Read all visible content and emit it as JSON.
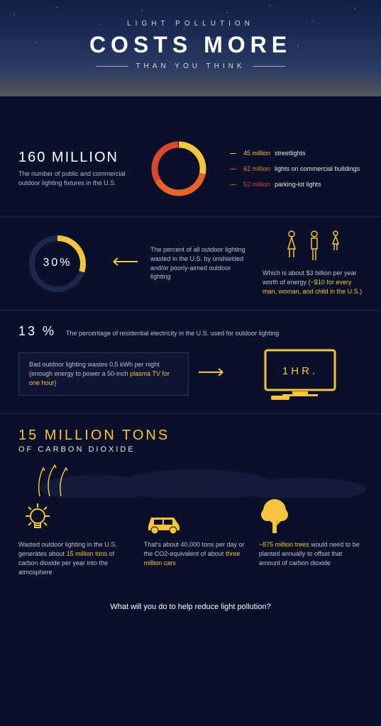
{
  "colors": {
    "bg": "#0a0f2a",
    "panel": "#111a3b",
    "yellow": "#f5c542",
    "orange": "#e8842a",
    "orange2": "#e8632a",
    "red": "#d9482a",
    "text": "#e8e8e8",
    "muted": "#c0c0d0",
    "white": "#ffffff"
  },
  "hero": {
    "eyebrow": "LIGHT POLLUTION",
    "title": "COSTS MORE",
    "subtitle": "THAN YOU THINK"
  },
  "section1": {
    "headline": "160 MILLION",
    "caption": "The number of public and commercial outdoor lighting fixtures in the U.S.",
    "donut": {
      "type": "donut",
      "total": 160,
      "segments": [
        {
          "label": "streetlights",
          "value": 45,
          "color": "#f5c542"
        },
        {
          "label": "lights on commercial buildings",
          "value": 62,
          "color": "#e8632a"
        },
        {
          "label": "parking-lot lights",
          "value": 52,
          "color": "#d9482a"
        }
      ],
      "stroke_width": 9,
      "radius": 34
    },
    "legend": [
      {
        "value": "45 million",
        "label": "streetlights",
        "value_color": "#f5c542"
      },
      {
        "value": "62 million",
        "label": "lights on commercial buildings",
        "value_color": "#e8632a"
      },
      {
        "value": "52 million",
        "label": "parking-lot lights",
        "value_color": "#d9482a"
      }
    ]
  },
  "section2": {
    "ring": {
      "type": "progress-ring",
      "percent": 30,
      "label": "30%",
      "color": "#f5c542",
      "track": "#1d274d",
      "stroke_width": 8,
      "radius": 36
    },
    "mid_text": "The percent of all outdoor lighting wasted in the U.S. by unshielded and/or poorly-aimed outdoor lighting",
    "right_text_pre": "Which is about $3 billion per year worth of energy ",
    "right_text_accent": "(~$10 for every man, woman, and child in the U.S.)",
    "icons": [
      "woman",
      "man",
      "child"
    ]
  },
  "section3": {
    "pct": "13 %",
    "pct_caption": "The percentage of residential electricity in the U.S. used for outdoor lighting",
    "box_pre": "Bad outdoor lighting wastes 0.5 kWh per night (enough energy to power a 50-inch ",
    "box_accent": "plasma TV for one hour",
    "box_post": ")",
    "tv_label": "1HR."
  },
  "section4": {
    "headline": "15 MILLION TONS",
    "subhead": "OF CARBON DIOXIDE",
    "cols": [
      {
        "icon": "bulb",
        "pre": "Wasted outdoor lighting in the U.S. generates about ",
        "accent": "15 million tons",
        "post": " of carbon dioxide per year into the atmosphere"
      },
      {
        "icon": "car",
        "pre": "That's about 40,000 tons per day or the CO2-equivalent of about ",
        "accent": "three million cars",
        "post": ""
      },
      {
        "icon": "tree",
        "pre": "",
        "accent": "~875 million trees",
        "post": " would need to be planted annually to offset that amount of carbon dioxide"
      }
    ]
  },
  "footer": "What will you do to help reduce light pollution?"
}
